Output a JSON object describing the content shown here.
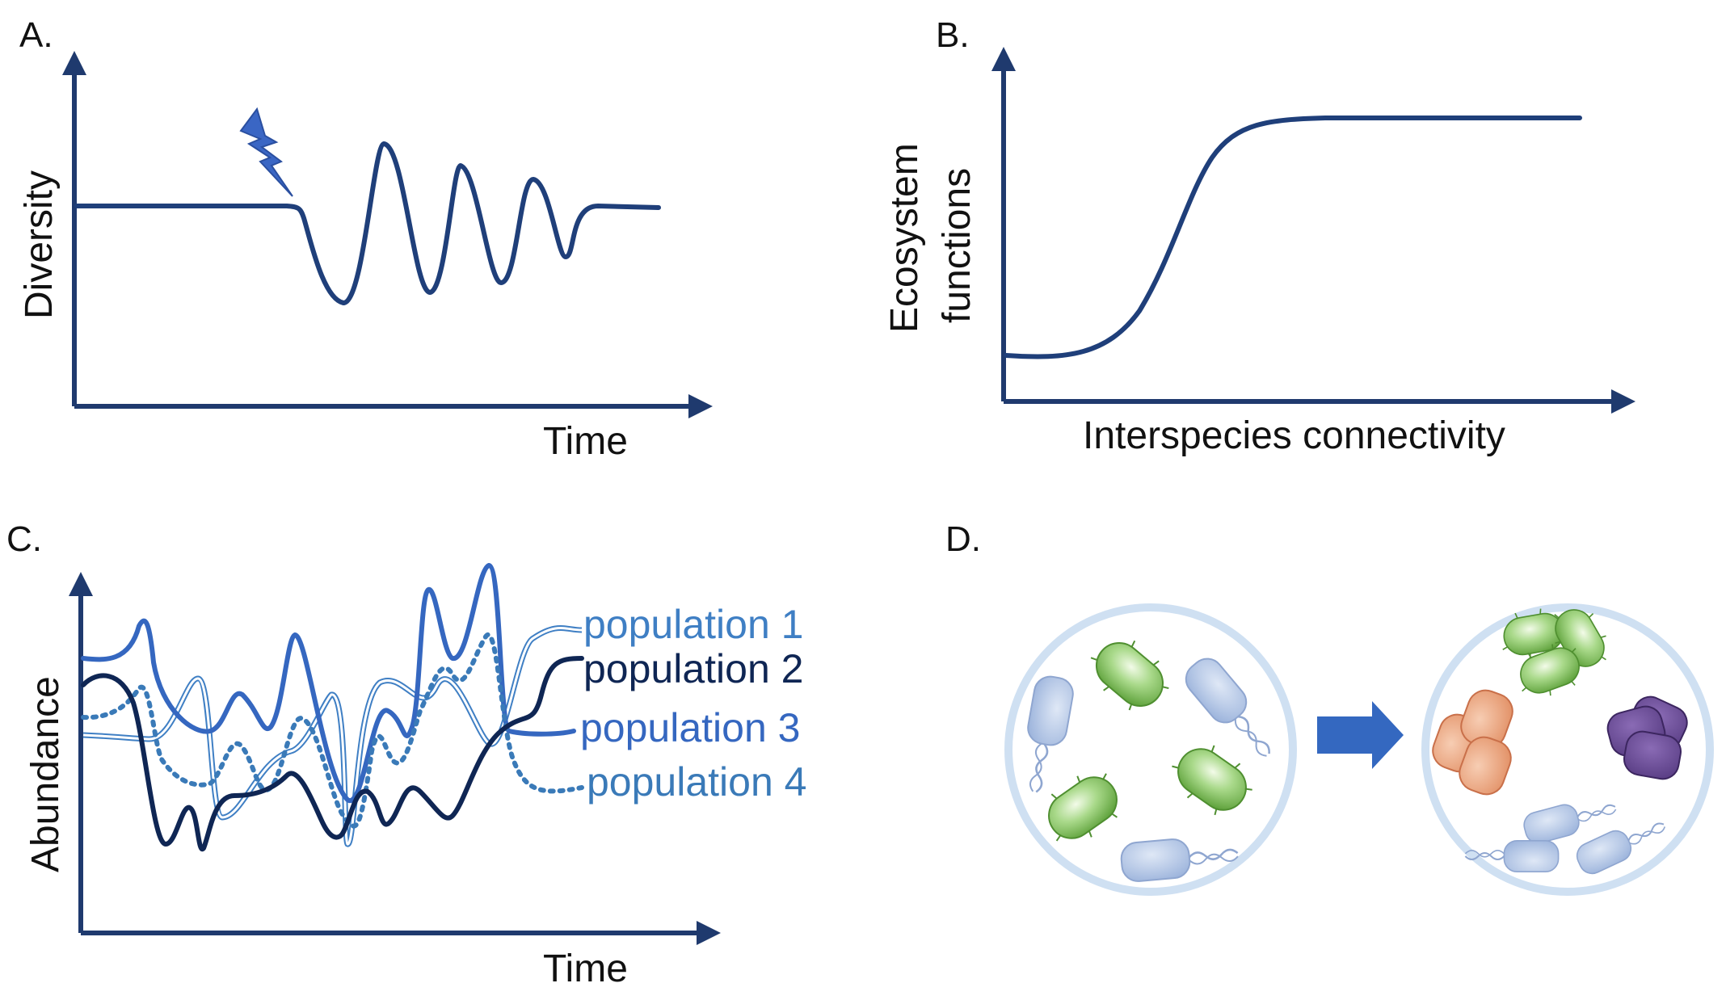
{
  "panels": {
    "a": {
      "label": "A.",
      "x_axis": "Time",
      "y_axis": "Diversity"
    },
    "b": {
      "label": "B.",
      "x_axis": "Interspecies connectivity",
      "y_axis_line1": "Ecosystem",
      "y_axis_line2": "functions"
    },
    "c": {
      "label": "C.",
      "x_axis": "Time",
      "y_axis": "Abundance",
      "populations": [
        {
          "name": "population 1",
          "color": "#3f7fc4",
          "style": "double"
        },
        {
          "name": "population 2",
          "color": "#0f2654",
          "style": "solid"
        },
        {
          "name": "population 3",
          "color": "#3567c0",
          "style": "solid"
        },
        {
          "name": "population 4",
          "color": "#3a7ab8",
          "style": "dotted"
        }
      ]
    },
    "d": {
      "label": "D.",
      "arrow_color": "#3468c0",
      "community_colors": {
        "green": "#7fbf5a",
        "blue": "#a9bde0",
        "orange": "#e8a07a",
        "purple": "#6a4c93"
      }
    }
  },
  "colors": {
    "axis": "#1f3a6e",
    "curve": "#1f3f7a",
    "lightning": "#3a66c4",
    "circle": "#cfe0f2"
  }
}
